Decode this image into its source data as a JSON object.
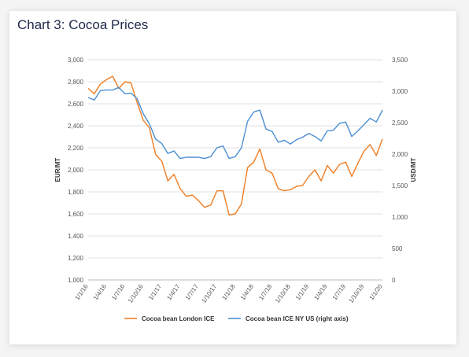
{
  "title": "Chart 3: Cocoa Prices",
  "chart_data": {
    "type": "line",
    "ylabel": "EUR/MT",
    "y2label": "USD/MT",
    "ylim": [
      1000,
      3000
    ],
    "y2lim": [
      0,
      3500
    ],
    "yticks": [
      "1,000",
      "1,200",
      "1,400",
      "1,600",
      "1,800",
      "2,000",
      "2,200",
      "2,400",
      "2,600",
      "2,800",
      "3,000"
    ],
    "y2ticks": [
      "0",
      "500",
      "1,000",
      "1,500",
      "2,000",
      "2,500",
      "3,000",
      "3,500"
    ],
    "xticks": [
      "1/1/16",
      "1/4/16",
      "1/7/16",
      "1/10/16",
      "1/1/17",
      "1/4/17",
      "1/7/17",
      "1/10/17",
      "1/1/18",
      "1/4/18",
      "1/7/18",
      "1/10/18",
      "1/1/19",
      "1/4/19",
      "1/7/19",
      "1/10/19",
      "1/1/20"
    ],
    "x": [
      "Jan-16",
      "Feb-16",
      "Mar-16",
      "Apr-16",
      "May-16",
      "Jun-16",
      "Jul-16",
      "Aug-16",
      "Sep-16",
      "Oct-16",
      "Nov-16",
      "Dec-16",
      "Jan-17",
      "Feb-17",
      "Mar-17",
      "Apr-17",
      "May-17",
      "Jun-17",
      "Jul-17",
      "Aug-17",
      "Sep-17",
      "Oct-17",
      "Nov-17",
      "Dec-17",
      "Jan-18",
      "Feb-18",
      "Mar-18",
      "Apr-18",
      "May-18",
      "Jun-18",
      "Jul-18",
      "Aug-18",
      "Sep-18",
      "Oct-18",
      "Nov-18",
      "Dec-18",
      "Jan-19",
      "Feb-19",
      "Mar-19",
      "Apr-19",
      "May-19",
      "Jun-19",
      "Jul-19",
      "Aug-19",
      "Sep-19",
      "Oct-19",
      "Nov-19",
      "Dec-19",
      "Jan-20"
    ],
    "series": [
      {
        "name": "Cocoa bean London ICE",
        "axis": "left",
        "color": "#ef7d22",
        "values": [
          2740,
          2690,
          2780,
          2820,
          2850,
          2740,
          2800,
          2790,
          2610,
          2450,
          2380,
          2140,
          2080,
          1900,
          1960,
          1830,
          1760,
          1770,
          1720,
          1660,
          1680,
          1810,
          1810,
          1590,
          1600,
          1690,
          2020,
          2070,
          2190,
          2000,
          1970,
          1830,
          1810,
          1820,
          1850,
          1860,
          1940,
          2000,
          1900,
          2040,
          1970,
          2050,
          2070,
          1940,
          2060,
          2170,
          2230,
          2130,
          2280
        ]
      },
      {
        "name": "Cocoa bean ICE NY US (right axis)",
        "axis": "right",
        "color": "#4b8fd1",
        "values": [
          2900,
          2860,
          3010,
          3020,
          3020,
          3060,
          2960,
          2970,
          2880,
          2640,
          2480,
          2240,
          2170,
          2010,
          2050,
          1930,
          1950,
          1950,
          1950,
          1930,
          1960,
          2100,
          2130,
          1930,
          1960,
          2100,
          2520,
          2670,
          2700,
          2400,
          2360,
          2190,
          2220,
          2160,
          2230,
          2270,
          2330,
          2280,
          2210,
          2370,
          2380,
          2490,
          2510,
          2280,
          2370,
          2470,
          2570,
          2510,
          2700
        ]
      }
    ],
    "legend": "bottom"
  }
}
